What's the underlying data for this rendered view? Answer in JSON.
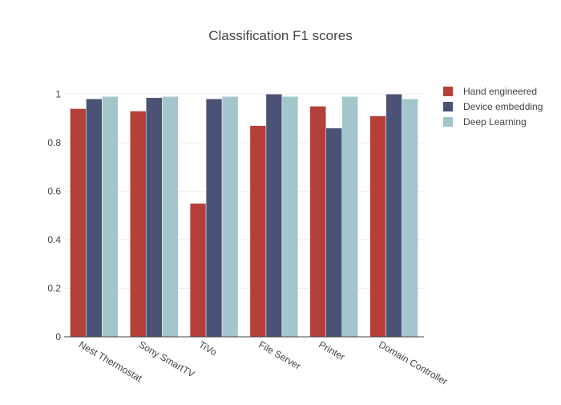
{
  "chart_data": {
    "type": "bar",
    "title": "Classification F1 scores",
    "xlabel": "",
    "ylabel": "",
    "categories": [
      "Nest Thermostat",
      "Sony SmartTV",
      "TiVo",
      "File Server",
      "Printer",
      "Domain Controller"
    ],
    "series": [
      {
        "name": "Hand engineered",
        "color": "#b5403a",
        "values": [
          0.94,
          0.93,
          0.55,
          0.87,
          0.95,
          0.91
        ]
      },
      {
        "name": "Device embedding",
        "color": "#4b5275",
        "values": [
          0.98,
          0.985,
          0.98,
          1.0,
          0.86,
          1.0
        ]
      },
      {
        "name": "Deep Learning",
        "color": "#a3c6cc",
        "values": [
          0.99,
          0.99,
          0.99,
          0.99,
          0.99,
          0.98
        ]
      }
    ],
    "ylim": [
      0,
      1.1
    ],
    "yticks": [
      0,
      0.2,
      0.4,
      0.6,
      0.8,
      1
    ],
    "ytick_labels": [
      "0",
      "0.2",
      "0.4",
      "0.6",
      "0.8",
      "1"
    ],
    "grid": true,
    "legend_position": "top-right"
  }
}
